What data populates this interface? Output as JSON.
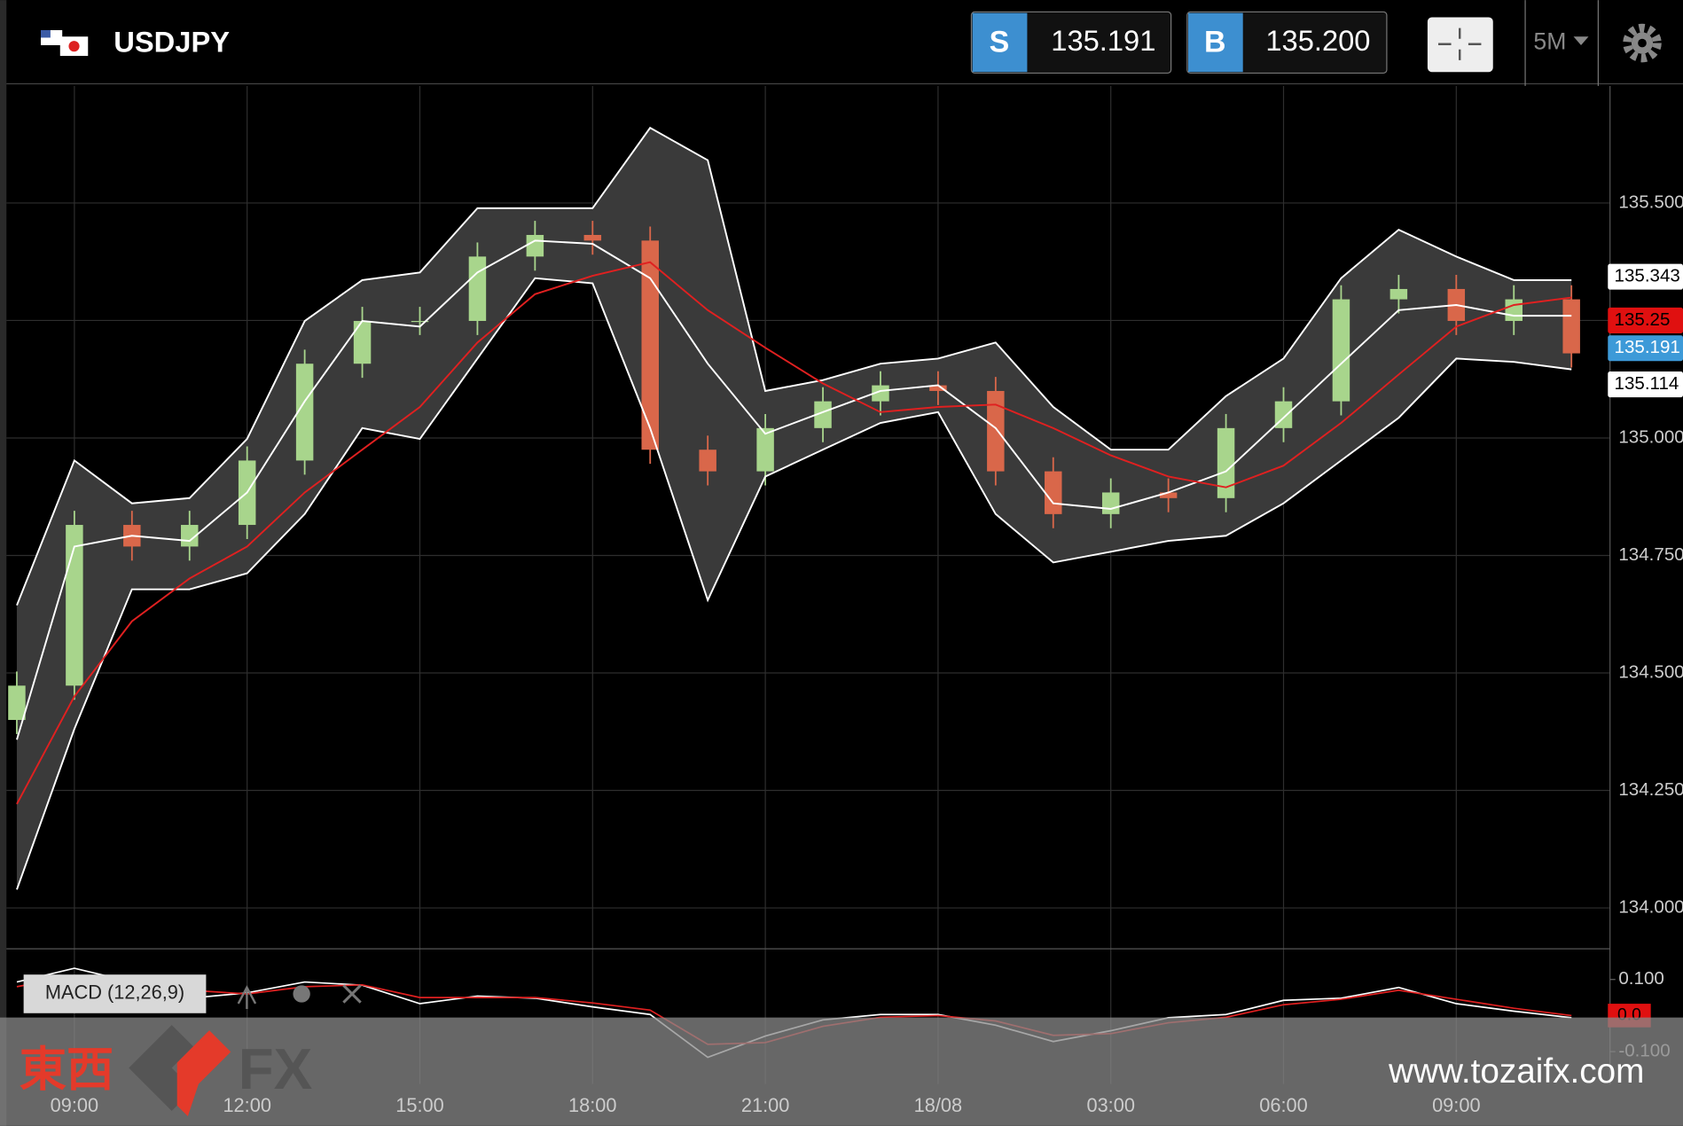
{
  "header": {
    "symbol": "USDJPY",
    "sell_label": "S",
    "sell_price": "135.191",
    "buy_label": "B",
    "buy_price": "135.200",
    "timeframe": "5M"
  },
  "watermark": {
    "brand_cjk": "東西",
    "brand_latin": "FX",
    "url": "www.tozaifx.com"
  },
  "chart_data": [
    {
      "type": "candlestick",
      "x": [
        8,
        9,
        10,
        11,
        12,
        13,
        14,
        15,
        16,
        17,
        18,
        19,
        20,
        21,
        22,
        23,
        24,
        25,
        26,
        27,
        28,
        29,
        30,
        31,
        32,
        33,
        34,
        35
      ],
      "open": [
        134.4,
        134.473,
        134.815,
        134.769,
        134.815,
        134.952,
        135.158,
        135.249,
        135.249,
        135.386,
        135.432,
        135.42,
        134.975,
        134.929,
        135.021,
        135.078,
        135.112,
        135.1,
        134.929,
        134.838,
        134.884,
        134.872,
        135.021,
        135.078,
        135.295,
        135.317,
        135.249,
        135.295
      ],
      "high": [
        134.503,
        134.845,
        134.845,
        134.845,
        134.982,
        135.188,
        135.279,
        135.279,
        135.416,
        135.462,
        135.462,
        135.45,
        135.005,
        135.051,
        135.108,
        135.142,
        135.142,
        135.13,
        134.959,
        134.914,
        134.914,
        135.051,
        135.108,
        135.325,
        135.347,
        135.347,
        135.325,
        135.325
      ],
      "low": [
        134.37,
        134.443,
        134.739,
        134.739,
        134.785,
        134.922,
        135.128,
        135.219,
        135.219,
        135.356,
        135.39,
        134.945,
        134.899,
        134.899,
        134.991,
        135.048,
        135.07,
        134.899,
        134.808,
        134.808,
        134.842,
        134.842,
        134.991,
        135.048,
        135.265,
        135.219,
        135.219,
        135.15
      ],
      "close": [
        134.473,
        134.815,
        134.769,
        134.815,
        134.952,
        135.158,
        135.249,
        135.249,
        135.386,
        135.432,
        135.42,
        134.975,
        134.929,
        135.021,
        135.078,
        135.112,
        135.1,
        134.929,
        134.838,
        134.884,
        134.872,
        135.021,
        135.078,
        135.295,
        135.317,
        135.249,
        135.295,
        135.18
      ],
      "up_color": "#a8d58c",
      "down_color": "#d9674a",
      "series": [
        {
          "color": "#ffffff",
          "values": [
            134.644,
            134.952,
            134.861,
            134.872,
            134.998,
            135.249,
            135.336,
            135.352,
            135.489,
            135.489,
            135.489,
            135.66,
            135.591,
            135.1,
            135.123,
            135.158,
            135.169,
            135.203,
            135.066,
            134.975,
            134.975,
            135.089,
            135.169,
            135.34,
            135.443,
            135.386,
            135.336,
            135.336
          ]
        },
        {
          "color": "#ffffff",
          "values": [
            134.358,
            134.769,
            134.792,
            134.781,
            134.884,
            135.078,
            135.249,
            135.237,
            135.352,
            135.42,
            135.413,
            135.34,
            135.158,
            135.009,
            135.055,
            135.1,
            135.112,
            135.021,
            134.861,
            134.849,
            134.884,
            134.929,
            135.043,
            135.158,
            135.272,
            135.283,
            135.26,
            135.26
          ]
        },
        {
          "color": "#ffffff",
          "values": [
            134.039,
            134.381,
            134.678,
            134.678,
            134.712,
            134.838,
            135.021,
            134.998,
            135.169,
            135.34,
            135.329,
            135.021,
            134.655,
            134.918,
            134.975,
            135.032,
            135.055,
            134.838,
            134.735,
            134.758,
            134.781,
            134.792,
            134.861,
            134.952,
            135.043,
            135.169,
            135.162,
            135.146
          ]
        },
        {
          "color": "#e02020",
          "values": [
            134.221,
            134.45,
            134.61,
            134.701,
            134.769,
            134.884,
            134.975,
            135.066,
            135.203,
            135.306,
            135.345,
            135.374,
            135.272,
            135.192,
            135.116,
            135.055,
            135.066,
            135.071,
            135.021,
            134.963,
            134.918,
            134.895,
            134.941,
            135.032,
            135.135,
            135.237,
            135.283,
            135.299
          ]
        }
      ],
      "band_fill": "#3a3a3a",
      "xlim": [
        7.82,
        35.67
      ],
      "xticks": [
        {
          "value": 9,
          "label": "09:00"
        },
        {
          "value": 12,
          "label": "12:00"
        },
        {
          "value": 15,
          "label": "15:00"
        },
        {
          "value": 18,
          "label": "18:00"
        },
        {
          "value": 21,
          "label": "21:00"
        },
        {
          "value": 24,
          "label": "18/08"
        },
        {
          "value": 27,
          "label": "03:00"
        },
        {
          "value": 30,
          "label": "06:00"
        },
        {
          "value": 33,
          "label": "09:00"
        }
      ],
      "ylim": [
        133.913,
        135.749
      ],
      "yticks": [
        {
          "value": 134,
          "label": "134.000"
        },
        {
          "value": 134.25,
          "label": "134.250"
        },
        {
          "value": 134.5,
          "label": "134.500"
        },
        {
          "value": 134.75,
          "label": "134.750"
        },
        {
          "value": 135,
          "label": "135.000"
        },
        {
          "value": 135.25,
          "label": "135.250"
        },
        {
          "value": 135.5,
          "label": "135.500"
        }
      ],
      "grid": true,
      "price_labels": [
        {
          "value": 135.343,
          "color": "#ffffff",
          "text_color": "#000000"
        },
        {
          "value": 135.25,
          "color": "#e01010",
          "text_color": "#000000"
        },
        {
          "value": 135.191,
          "color": "#3d9ad8",
          "text_color": "#ffffff"
        },
        {
          "value": 135.114,
          "color": "#ffffff",
          "text_color": "#000000"
        }
      ]
    },
    {
      "type": "line",
      "title": "MACD (12,26,9)",
      "x": [
        8,
        9,
        10,
        11,
        12,
        13,
        14,
        15,
        16,
        17,
        18,
        19,
        20,
        21,
        22,
        23,
        24,
        25,
        26,
        27,
        28,
        29,
        30,
        31,
        32,
        33,
        34,
        35
      ],
      "series": [
        {
          "color": "#ffffff",
          "values": [
            0.093,
            0.131,
            0.093,
            0.048,
            0.063,
            0.093,
            0.084,
            0.033,
            0.054,
            0.048,
            0.024,
            0.003,
            -0.116,
            -0.057,
            -0.012,
            0.003,
            0.003,
            -0.027,
            -0.072,
            -0.042,
            -0.006,
            0.003,
            0.042,
            0.048,
            0.078,
            0.033,
            0.012,
            -0.006
          ]
        },
        {
          "color": "#e02020",
          "values": [
            0.08,
            0.11,
            0.105,
            0.07,
            0.06,
            0.08,
            0.085,
            0.05,
            0.05,
            0.05,
            0.035,
            0.015,
            -0.08,
            -0.075,
            -0.03,
            -0.005,
            0.0,
            -0.015,
            -0.055,
            -0.05,
            -0.02,
            -0.005,
            0.03,
            0.045,
            0.07,
            0.045,
            0.02,
            0.0
          ]
        }
      ],
      "xlim": [
        7.82,
        35.67
      ],
      "ylim": [
        -0.19,
        0.185
      ],
      "yticks": [
        {
          "value": -0.1,
          "label": "-0.100"
        },
        {
          "value": 0.1,
          "label": "0.100"
        }
      ],
      "current_label": {
        "value": 0,
        "label": "0.0",
        "color": "#e01010"
      }
    }
  ]
}
